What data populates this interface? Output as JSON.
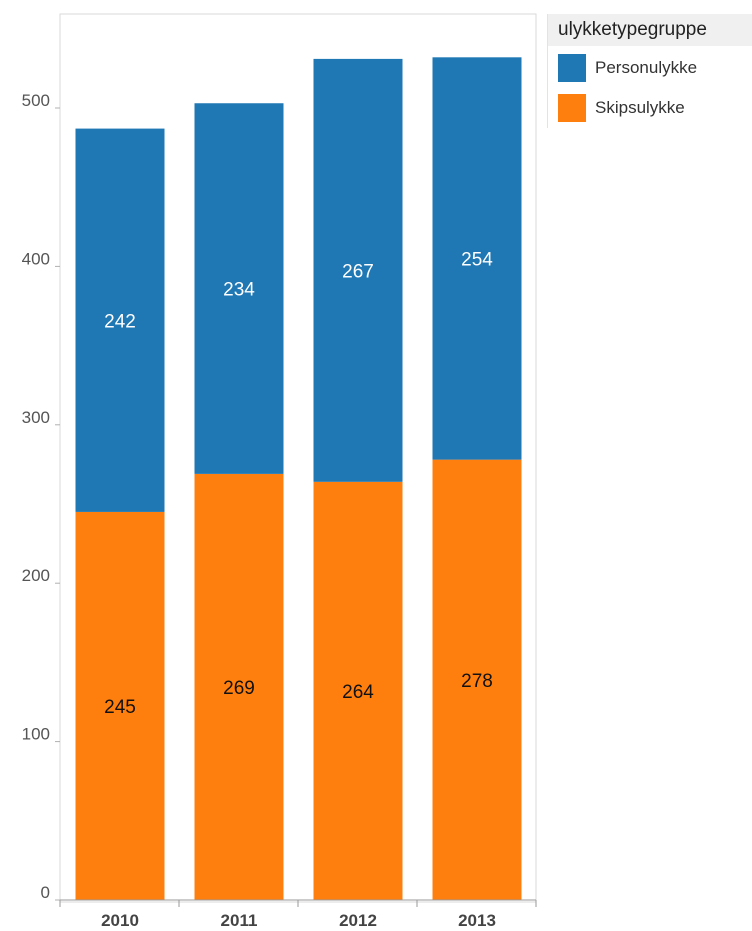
{
  "chart_data": {
    "type": "bar",
    "stacked": true,
    "categories": [
      "2010",
      "2011",
      "2012",
      "2013"
    ],
    "series": [
      {
        "name": "Skipsulykke",
        "values": [
          245,
          269,
          264,
          278
        ],
        "color": "#ff7f0e",
        "label_color": "#111111"
      },
      {
        "name": "Personulykke",
        "values": [
          242,
          234,
          267,
          254
        ],
        "color": "#1f77b4",
        "label_color": "#ffffff"
      }
    ],
    "yticks": [
      0,
      100,
      200,
      300,
      400,
      500
    ],
    "ylim": [
      0,
      560
    ],
    "grid": false,
    "legend": {
      "title": "ulykketypegruppe",
      "placement": "top-right"
    }
  },
  "legend": {
    "title": "ulykketypegruppe",
    "items": [
      {
        "label": "Personulykke",
        "color": "#1f77b4"
      },
      {
        "label": "Skipsulykke",
        "color": "#ff7f0e"
      }
    ]
  }
}
